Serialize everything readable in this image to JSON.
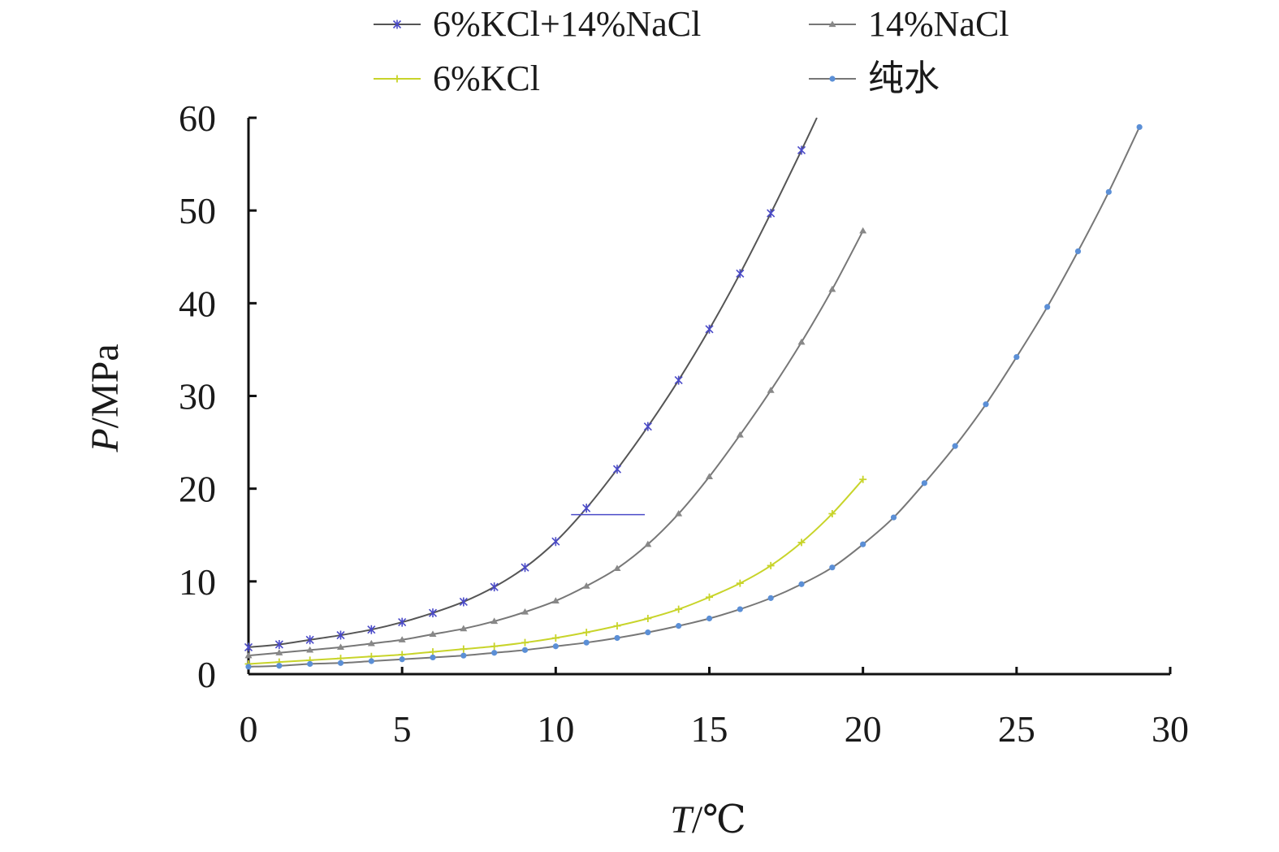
{
  "chart_data": {
    "type": "line",
    "title": "",
    "xlabel_var": "T",
    "xlabel_unit": "/℃",
    "ylabel_var": "P",
    "ylabel_unit": "/MPa",
    "xlim": [
      0,
      30
    ],
    "ylim": [
      0,
      60
    ],
    "xticks": [
      "0",
      "5",
      "10",
      "15",
      "20",
      "25",
      "30"
    ],
    "yticks": [
      "0",
      "10",
      "20",
      "30",
      "40",
      "50",
      "60"
    ],
    "grid": false,
    "legend_position": "top",
    "series": [
      {
        "name": "6%KCl+14%NaCl",
        "color": "#555555",
        "marker_color": "#4a4ac8",
        "marker": "star",
        "x": [
          0,
          1,
          2,
          3,
          4,
          5,
          6,
          7,
          8,
          9,
          10,
          11,
          12,
          13,
          14,
          15,
          16,
          17,
          18,
          18.5
        ],
        "y": [
          2.9,
          3.2,
          3.7,
          4.2,
          4.8,
          5.6,
          6.6,
          7.8,
          9.4,
          11.5,
          14.3,
          17.9,
          22.1,
          26.7,
          31.7,
          37.2,
          43.2,
          49.7,
          56.5,
          60
        ]
      },
      {
        "name": "14%NaCl",
        "color": "#777777",
        "marker_color": "#888888",
        "marker": "triangle",
        "x": [
          0,
          1,
          2,
          3,
          4,
          5,
          6,
          7,
          8,
          9,
          10,
          11,
          12,
          13,
          14,
          15,
          16,
          17,
          18,
          19,
          20
        ],
        "y": [
          2.0,
          2.3,
          2.6,
          2.9,
          3.3,
          3.7,
          4.3,
          4.9,
          5.7,
          6.7,
          7.9,
          9.5,
          11.4,
          14.0,
          17.3,
          21.3,
          25.8,
          30.6,
          35.8,
          41.5,
          47.8
        ]
      },
      {
        "name": "6%KCl",
        "color": "#c8d42a",
        "marker_color": "#c8d42a",
        "marker": "plus",
        "x": [
          0,
          1,
          2,
          3,
          4,
          5,
          6,
          7,
          8,
          9,
          10,
          11,
          12,
          13,
          14,
          15,
          16,
          17,
          18,
          19,
          20
        ],
        "y": [
          1.1,
          1.3,
          1.5,
          1.7,
          1.9,
          2.1,
          2.4,
          2.7,
          3.0,
          3.4,
          3.9,
          4.5,
          5.2,
          6.0,
          7.0,
          8.3,
          9.8,
          11.7,
          14.2,
          17.3,
          21.0
        ]
      },
      {
        "name": "纯水",
        "color": "#777777",
        "marker_color": "#5b8fd6",
        "marker": "circle",
        "x": [
          0,
          1,
          2,
          3,
          4,
          5,
          6,
          7,
          8,
          9,
          10,
          11,
          12,
          13,
          14,
          15,
          16,
          17,
          18,
          19,
          20,
          21,
          22,
          23,
          24,
          25,
          26,
          27,
          28,
          29
        ],
        "y": [
          0.8,
          0.9,
          1.1,
          1.2,
          1.4,
          1.6,
          1.8,
          2.0,
          2.3,
          2.6,
          3.0,
          3.4,
          3.9,
          4.5,
          5.2,
          6.0,
          7.0,
          8.2,
          9.7,
          11.5,
          14.0,
          16.9,
          20.6,
          24.6,
          29.1,
          34.2,
          39.6,
          45.6,
          52.0,
          59.0
        ]
      }
    ]
  }
}
